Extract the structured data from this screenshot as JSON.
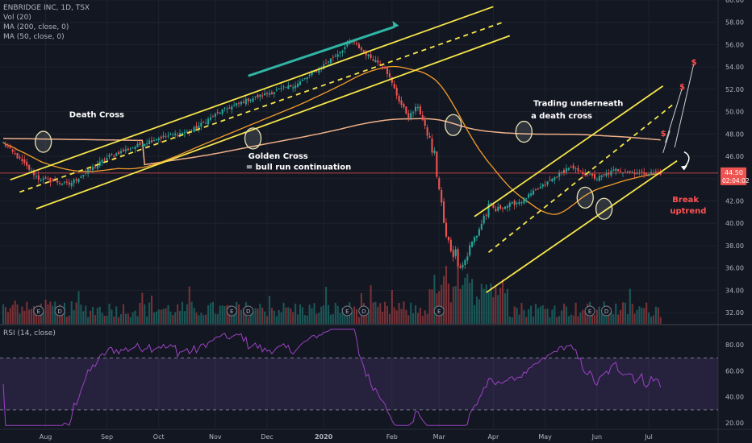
{
  "header": {
    "symbol_line": "ENBRIDGE INC, 1D, TSX",
    "indicators": [
      "Vol (20)",
      "MA (200, close, 0)",
      "MA (50, close, 0)"
    ]
  },
  "rsi_header": "RSI (14, close)",
  "colors": {
    "bg": "#131722",
    "up": "#26a69a",
    "down": "#ef5350",
    "trendline": "#f7e64a",
    "ma200": "#f0b088",
    "ma50": "#f59d2a",
    "arrow": "#30b6a4",
    "rsi": "#9c42c4",
    "price_line": "#ef5350",
    "label": "#ffffff",
    "red_label": "#ff5252"
  },
  "chart_data": {
    "type": "candlestick",
    "x_ticks": [
      "Aug",
      "Sep",
      "Oct",
      "Nov",
      "Dec",
      "2020",
      "Feb",
      "Mar",
      "Apr",
      "May",
      "Jun",
      "Jul"
    ],
    "price_axis": {
      "ticks": [
        "60.00",
        "58.00",
        "56.00",
        "54.00",
        "52.00",
        "50.00",
        "48.00",
        "46.00",
        "44.00",
        "42.00",
        "40.00",
        "38.00",
        "36.00",
        "34.00",
        "32.00"
      ],
      "range": [
        31,
        60
      ]
    },
    "last_price": "44.50",
    "countdown": "02:04:02",
    "rsi_axis": {
      "ticks": [
        "80.00",
        "60.00",
        "40.00",
        "20.00"
      ],
      "range": [
        15,
        95
      ],
      "bands": [
        70,
        30
      ]
    },
    "annotations": {
      "death_cross": "Death Cross",
      "golden_cross": "Golden Cross",
      "golden_cross_sub": "= bull run continuation",
      "trading_under": "Trading underneath",
      "trading_under_sub": "a death cross",
      "break": "Break",
      "break_sub": "uptrend",
      "dollar": "$"
    },
    "event_markers": [
      "E",
      "D",
      "E",
      "D",
      "E",
      "D",
      "E",
      "E",
      "D"
    ],
    "closes_anchor": [
      [
        0,
        47.2
      ],
      [
        15,
        44
      ],
      [
        28,
        43.5
      ],
      [
        45,
        46
      ],
      [
        65,
        47.6
      ],
      [
        80,
        48.3
      ],
      [
        92,
        50
      ],
      [
        103,
        51
      ],
      [
        125,
        52.5
      ],
      [
        135,
        54
      ],
      [
        148,
        56.3
      ],
      [
        155,
        55
      ],
      [
        162,
        54
      ],
      [
        168,
        51
      ],
      [
        172,
        49.5
      ],
      [
        176,
        50.5
      ],
      [
        183,
        46
      ],
      [
        188,
        38.5
      ],
      [
        195,
        36.3
      ],
      [
        205,
        41
      ],
      [
        220,
        42
      ],
      [
        232,
        43.8
      ],
      [
        240,
        45
      ],
      [
        252,
        44
      ],
      [
        260,
        44.8
      ],
      [
        270,
        44.5
      ]
    ]
  }
}
